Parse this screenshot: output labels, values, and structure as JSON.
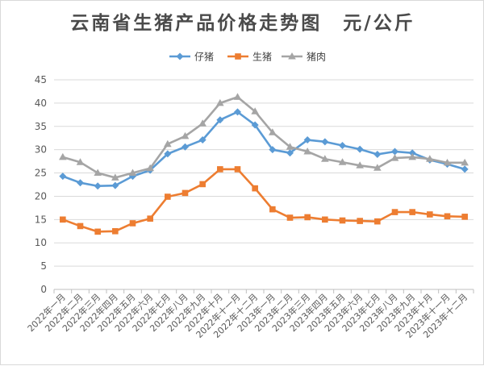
{
  "chart_data": {
    "type": "line",
    "title": "云南省生猪产品价格走势图　元/公斤",
    "categories": [
      "2022年一月",
      "2022年二月",
      "2022年三月",
      "2022年四月",
      "2022年五月",
      "2022年六月",
      "2022年七月",
      "2022年八月",
      "2022年九月",
      "2022年十月",
      "2022年十一月",
      "2022年十二月",
      "2023年一月",
      "2023年二月",
      "2023年三月",
      "2023年四月",
      "2023年五月",
      "2023年六月",
      "2023年七月",
      "2023年八月",
      "2023年九月",
      "2023年十月",
      "2023年十一月",
      "2023年十二月"
    ],
    "series": [
      {
        "name": "仔猪",
        "color": "#5b9bd5",
        "marker": "diamond",
        "values": [
          24.3,
          22.9,
          22.2,
          22.3,
          24.3,
          25.6,
          29.1,
          30.6,
          32.1,
          36.4,
          38.1,
          35.3,
          30.0,
          29.3,
          32.1,
          31.7,
          30.9,
          30.1,
          29.0,
          29.6,
          29.3,
          27.8,
          26.9,
          25.8
        ]
      },
      {
        "name": "生猪",
        "color": "#ed7d31",
        "marker": "square",
        "values": [
          15.0,
          13.6,
          12.4,
          12.5,
          14.2,
          15.2,
          19.9,
          20.7,
          22.6,
          25.8,
          25.8,
          21.7,
          17.2,
          15.4,
          15.5,
          15.0,
          14.8,
          14.7,
          14.6,
          16.6,
          16.6,
          16.1,
          15.7,
          15.6
        ]
      },
      {
        "name": "猪肉",
        "color": "#a5a5a5",
        "marker": "triangle",
        "values": [
          28.4,
          27.3,
          25.0,
          24.0,
          25.0,
          26.0,
          31.2,
          32.9,
          35.6,
          40.0,
          41.3,
          38.2,
          33.7,
          30.6,
          29.6,
          28.0,
          27.3,
          26.6,
          26.1,
          28.2,
          28.4,
          28.0,
          27.2,
          27.2
        ]
      }
    ],
    "ylim": [
      0,
      45
    ],
    "yticks": [
      0,
      5,
      10,
      15,
      20,
      25,
      30,
      35,
      40,
      45
    ],
    "xlabel": "",
    "ylabel": "",
    "grid": true,
    "legend": "top-center"
  }
}
